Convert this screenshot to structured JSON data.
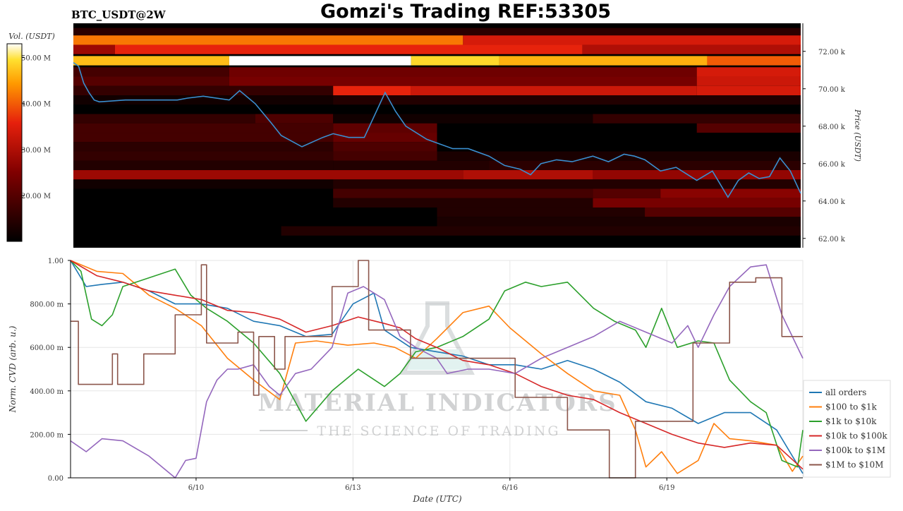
{
  "header": {
    "symbol": "BTC_USDT@2W",
    "title": "Gomzi's Trading REF:53305"
  },
  "watermark": {
    "main": "MATERIAL INDICATORS",
    "tagline": "THE SCIENCE OF TRADING"
  },
  "colors": {
    "all_orders": "#1f77b4",
    "r100_1k": "#ff7f0e",
    "r1k_10k": "#2ca02c",
    "r10k_100k": "#d62728",
    "r100k_1m": "#9467bd",
    "r1m_10m": "#8c564b",
    "price_line": "#3a8fd0"
  },
  "chart_data": [
    {
      "type": "heatmap",
      "colorbar": {
        "label": "Vol. (USDT)",
        "ticks": [
          "20.00 M",
          "30.00 M",
          "40.00 M",
          "50.00 M"
        ],
        "tick_values": [
          20,
          30,
          40,
          50
        ],
        "range": [
          10,
          53
        ]
      },
      "ylabel": "Price (USDT)",
      "yticks": [
        "62.00 k",
        "64.00 k",
        "66.00 k",
        "68.00 k",
        "70.00 k",
        "72.00 k"
      ],
      "ytick_values": [
        62000,
        64000,
        66000,
        68000,
        70000,
        72000
      ],
      "ylim": [
        61500,
        73500
      ],
      "xlim_days": [
        0,
        14
      ],
      "bands": [
        {
          "price": 73000,
          "segments": [
            [
              0,
              14,
              15
            ]
          ]
        },
        {
          "price": 72600,
          "segments": [
            [
              0,
              7.5,
              42
            ],
            [
              7.5,
              14,
              34
            ]
          ]
        },
        {
          "price": 72100,
          "segments": [
            [
              0,
              0.8,
              28
            ],
            [
              0.8,
              9.8,
              36
            ],
            [
              9.8,
              14,
              30
            ]
          ]
        },
        {
          "price": 71500,
          "segments": [
            [
              0,
              3,
              47
            ],
            [
              3,
              6.5,
              53
            ],
            [
              6.5,
              8.2,
              49
            ],
            [
              8.2,
              12.2,
              46
            ],
            [
              12.2,
              14,
              40
            ]
          ]
        },
        {
          "price": 70900,
          "segments": [
            [
              0,
              3,
              18
            ],
            [
              3,
              12,
              23
            ],
            [
              12,
              14,
              34
            ]
          ]
        },
        {
          "price": 70400,
          "segments": [
            [
              0,
              3,
              20
            ],
            [
              3,
              12,
              24
            ],
            [
              12,
              14,
              33
            ]
          ]
        },
        {
          "price": 69900,
          "segments": [
            [
              0,
              5,
              16
            ],
            [
              5,
              6.5,
              36
            ],
            [
              6.5,
              12,
              33
            ],
            [
              12,
              14,
              34
            ]
          ]
        },
        {
          "price": 69400,
          "segments": [
            [
              0,
              5,
              12
            ],
            [
              5,
              14,
              14
            ]
          ]
        },
        {
          "price": 68400,
          "segments": [
            [
              0,
              3.5,
              16
            ],
            [
              3.5,
              5,
              19
            ],
            [
              5,
              10,
              12
            ],
            [
              10,
              14,
              16
            ]
          ]
        },
        {
          "price": 67900,
          "segments": [
            [
              0,
              5,
              18
            ],
            [
              5,
              7,
              21
            ],
            [
              12,
              14,
              20
            ]
          ]
        },
        {
          "price": 67400,
          "segments": [
            [
              0,
              5,
              18
            ],
            [
              5,
              7,
              22
            ]
          ]
        },
        {
          "price": 66900,
          "segments": [
            [
              0,
              5,
              15
            ],
            [
              5,
              7,
              19
            ]
          ]
        },
        {
          "price": 66400,
          "segments": [
            [
              0,
              5,
              16
            ],
            [
              5,
              7,
              18
            ],
            [
              7,
              14,
              13
            ]
          ]
        },
        {
          "price": 65900,
          "segments": [
            [
              0,
              5,
              14
            ],
            [
              5,
              8,
              14
            ],
            [
              8,
              14,
              15
            ]
          ]
        },
        {
          "price": 65400,
          "segments": [
            [
              0,
              7.5,
              28
            ],
            [
              7.5,
              10,
              30
            ],
            [
              10,
              14,
              27
            ]
          ]
        },
        {
          "price": 64900,
          "segments": [
            [
              0,
              5,
              12
            ],
            [
              5,
              14,
              14
            ]
          ]
        },
        {
          "price": 64400,
          "segments": [
            [
              5,
              10,
              18
            ],
            [
              10,
              11.3,
              20
            ],
            [
              11.3,
              14,
              26
            ]
          ]
        },
        {
          "price": 63900,
          "segments": [
            [
              5,
              10,
              14
            ],
            [
              10,
              14,
              24
            ]
          ]
        },
        {
          "price": 63400,
          "segments": [
            [
              7,
              11,
              14
            ],
            [
              11,
              14,
              20
            ]
          ]
        },
        {
          "price": 62900,
          "segments": [
            [
              7,
              14,
              13
            ]
          ]
        },
        {
          "price": 62400,
          "segments": [
            [
              4,
              14,
              14
            ]
          ]
        }
      ],
      "price_line": {
        "x": [
          0,
          0.1,
          0.2,
          0.3,
          0.4,
          0.5,
          1,
          1.5,
          2,
          2.2,
          2.5,
          3,
          3.2,
          3.5,
          3.8,
          4,
          4.4,
          4.8,
          5,
          5.3,
          5.6,
          6,
          6.2,
          6.4,
          6.8,
          7,
          7.3,
          7.6,
          8,
          8.3,
          8.6,
          8.8,
          9,
          9.3,
          9.6,
          10,
          10.3,
          10.6,
          10.8,
          11,
          11.3,
          11.6,
          12,
          12.3,
          12.6,
          12.8,
          13,
          13.2,
          13.4,
          13.6,
          13.8,
          14
        ],
        "y": [
          71400,
          71200,
          70300,
          69800,
          69400,
          69300,
          69400,
          69400,
          69400,
          69500,
          69600,
          69400,
          69900,
          69200,
          68200,
          67500,
          66900,
          67400,
          67600,
          67400,
          67400,
          69800,
          68800,
          68000,
          67300,
          67100,
          66800,
          66800,
          66400,
          65900,
          65700,
          65400,
          66000,
          66200,
          66100,
          66400,
          66100,
          66500,
          66400,
          66200,
          65600,
          65800,
          65100,
          65600,
          64200,
          65100,
          65500,
          65200,
          65300,
          66300,
          65600,
          64400
        ]
      },
      "notes": "price reaches about 64,000 at the right edge"
    },
    {
      "type": "line",
      "xlabel": "Date (UTC)",
      "ylabel": "Norm. CVD (arb. u.)",
      "ylim": [
        0,
        1
      ],
      "xlim_days": [
        0,
        14
      ],
      "xticks": [
        "6/10",
        "6/13",
        "6/16",
        "6/19"
      ],
      "xtick_days": [
        2.4,
        5.4,
        8.4,
        11.4
      ],
      "yticks": [
        "0.00",
        "200.00 m",
        "400.00 m",
        "600.00 m",
        "800.00 m",
        "1.00"
      ],
      "ytick_values": [
        0,
        0.2,
        0.4,
        0.6,
        0.8,
        1.0
      ],
      "legend": {
        "location": "lower-right"
      },
      "grid": true,
      "series": [
        {
          "name": "all orders",
          "color_key": "all_orders",
          "x": [
            0,
            0.3,
            0.6,
            1,
            1.5,
            2,
            2.5,
            3,
            3.5,
            4,
            4.5,
            5,
            5.4,
            5.8,
            6,
            6.5,
            7,
            7.5,
            8,
            8.5,
            9,
            9.5,
            10,
            10.5,
            11,
            11.5,
            12,
            12.5,
            13,
            13.5,
            14
          ],
          "y": [
            1.0,
            0.88,
            0.89,
            0.9,
            0.86,
            0.8,
            0.8,
            0.78,
            0.72,
            0.7,
            0.65,
            0.66,
            0.8,
            0.85,
            0.68,
            0.6,
            0.58,
            0.56,
            0.52,
            0.52,
            0.5,
            0.54,
            0.5,
            0.44,
            0.35,
            0.32,
            0.25,
            0.3,
            0.3,
            0.22,
            0.02
          ]
        },
        {
          "name": "$100 to $1k",
          "color_key": "r100_1k",
          "x": [
            0,
            0.5,
            1,
            1.5,
            2,
            2.5,
            3,
            3.5,
            4,
            4.3,
            4.7,
            5,
            5.3,
            5.8,
            6.2,
            6.6,
            7,
            7.5,
            8,
            8.4,
            9,
            9.5,
            10,
            10.5,
            10.8,
            11,
            11.3,
            11.6,
            12,
            12.3,
            12.6,
            13,
            13.5,
            13.8,
            14
          ],
          "y": [
            1.0,
            0.95,
            0.94,
            0.84,
            0.78,
            0.7,
            0.55,
            0.45,
            0.36,
            0.62,
            0.63,
            0.62,
            0.61,
            0.62,
            0.6,
            0.55,
            0.64,
            0.76,
            0.79,
            0.69,
            0.57,
            0.48,
            0.4,
            0.38,
            0.22,
            0.05,
            0.12,
            0.02,
            0.08,
            0.25,
            0.18,
            0.17,
            0.15,
            0.03,
            0.1
          ]
        },
        {
          "name": "$1k to $10k",
          "color_key": "r1k_10k",
          "x": [
            0,
            0.2,
            0.4,
            0.6,
            0.8,
            1,
            1.5,
            2,
            2.3,
            2.6,
            3,
            3.5,
            4,
            4.5,
            5,
            5.5,
            6,
            6.3,
            6.6,
            7,
            7.5,
            8,
            8.3,
            8.7,
            9,
            9.5,
            10,
            10.4,
            10.8,
            11,
            11.3,
            11.6,
            12,
            12.3,
            12.6,
            13,
            13.3,
            13.6,
            13.9,
            14
          ],
          "y": [
            1.0,
            0.95,
            0.73,
            0.7,
            0.75,
            0.88,
            0.92,
            0.96,
            0.84,
            0.78,
            0.72,
            0.62,
            0.48,
            0.26,
            0.4,
            0.5,
            0.42,
            0.48,
            0.58,
            0.6,
            0.65,
            0.73,
            0.86,
            0.9,
            0.88,
            0.9,
            0.78,
            0.72,
            0.68,
            0.6,
            0.78,
            0.6,
            0.63,
            0.62,
            0.45,
            0.35,
            0.3,
            0.08,
            0.05,
            0.22
          ]
        },
        {
          "name": "$10k to $100k",
          "color_key": "r10k_100k",
          "x": [
            0,
            0.5,
            1,
            1.5,
            2,
            2.5,
            3,
            3.5,
            4,
            4.5,
            5,
            5.5,
            6,
            6.3,
            6.6,
            7,
            7.5,
            8,
            8.5,
            9,
            9.5,
            10,
            10.5,
            11,
            11.5,
            12,
            12.5,
            13,
            13.5,
            14
          ],
          "y": [
            1.0,
            0.93,
            0.9,
            0.86,
            0.84,
            0.82,
            0.77,
            0.76,
            0.73,
            0.67,
            0.7,
            0.74,
            0.71,
            0.69,
            0.64,
            0.6,
            0.54,
            0.52,
            0.48,
            0.42,
            0.38,
            0.36,
            0.3,
            0.25,
            0.2,
            0.16,
            0.14,
            0.16,
            0.15,
            0.04
          ]
        },
        {
          "name": "$100k to $1M",
          "color_key": "r100k_1m",
          "x": [
            0,
            0.3,
            0.6,
            1,
            1.5,
            2,
            2.2,
            2.4,
            2.6,
            2.8,
            3,
            3.2,
            3.5,
            3.8,
            4,
            4.3,
            4.6,
            5,
            5.3,
            5.6,
            6,
            6.3,
            6.6,
            7,
            7.2,
            7.6,
            8,
            8.5,
            9,
            9.5,
            10,
            10.5,
            11,
            11.5,
            11.8,
            12,
            12.3,
            12.6,
            13,
            13.3,
            13.6,
            14
          ],
          "y": [
            0.17,
            0.12,
            0.18,
            0.17,
            0.1,
            0.0,
            0.08,
            0.09,
            0.35,
            0.45,
            0.5,
            0.5,
            0.52,
            0.42,
            0.38,
            0.48,
            0.5,
            0.6,
            0.85,
            0.88,
            0.82,
            0.65,
            0.6,
            0.55,
            0.48,
            0.5,
            0.5,
            0.48,
            0.55,
            0.6,
            0.65,
            0.72,
            0.67,
            0.62,
            0.7,
            0.6,
            0.75,
            0.88,
            0.97,
            0.98,
            0.75,
            0.55
          ]
        },
        {
          "name": "$1M to $10M",
          "color_key": "r1m_10m",
          "step": true,
          "x": [
            0,
            0.15,
            0.8,
            0.9,
            1.4,
            1.45,
            2.0,
            2.5,
            2.6,
            3.2,
            3.5,
            3.6,
            3.9,
            4.1,
            5.0,
            5.5,
            5.7,
            6.5,
            8.5,
            9.5,
            10.3,
            10.8,
            11.1,
            11.9,
            12.6,
            13.1,
            13.6,
            14
          ],
          "y": [
            0.72,
            0.43,
            0.57,
            0.43,
            0.57,
            0.57,
            0.75,
            0.98,
            0.62,
            0.67,
            0.38,
            0.65,
            0.5,
            0.65,
            0.88,
            1.0,
            0.68,
            0.55,
            0.37,
            0.22,
            0.0,
            0.26,
            0.26,
            0.62,
            0.9,
            0.92,
            0.65,
            0.65
          ]
        }
      ]
    }
  ]
}
